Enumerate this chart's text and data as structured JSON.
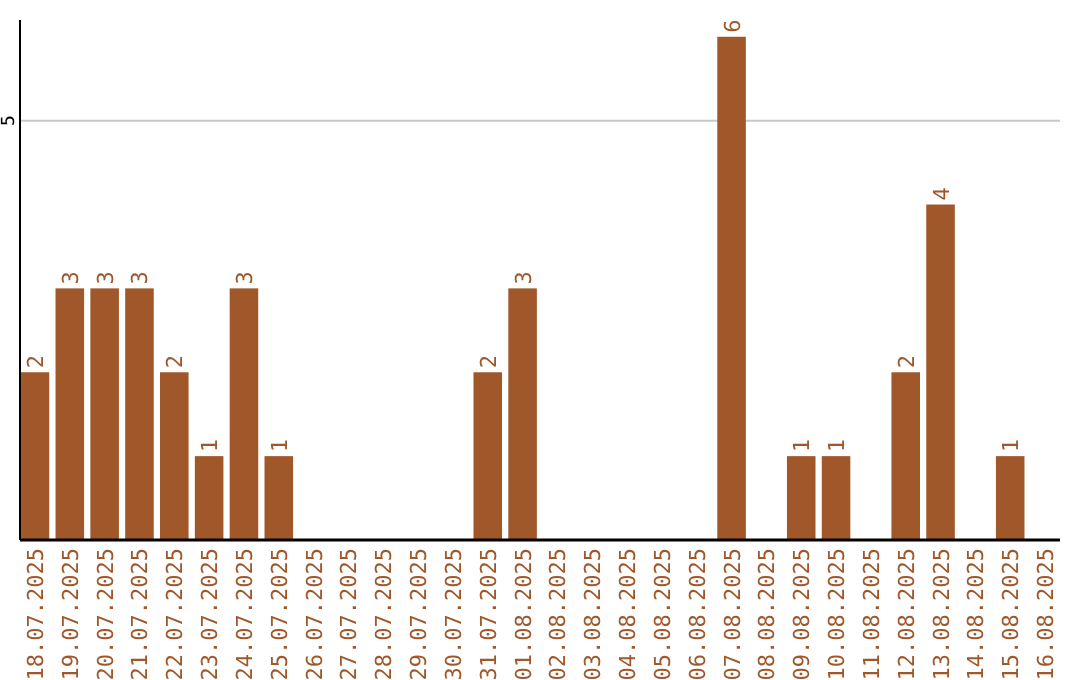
{
  "chart_data": {
    "type": "bar",
    "categories": [
      "18.07.2025",
      "19.07.2025",
      "20.07.2025",
      "21.07.2025",
      "22.07.2025",
      "23.07.2025",
      "24.07.2025",
      "25.07.2025",
      "26.07.2025",
      "27.07.2025",
      "28.07.2025",
      "29.07.2025",
      "30.07.2025",
      "31.07.2025",
      "01.08.2025",
      "02.08.2025",
      "03.08.2025",
      "04.08.2025",
      "05.08.2025",
      "06.08.2025",
      "07.08.2025",
      "08.08.2025",
      "09.08.2025",
      "10.08.2025",
      "11.08.2025",
      "12.08.2025",
      "13.08.2025",
      "14.08.2025",
      "15.08.2025",
      "16.08.2025"
    ],
    "values": [
      2,
      3,
      3,
      3,
      2,
      1,
      3,
      1,
      0,
      0,
      0,
      0,
      0,
      2,
      3,
      0,
      0,
      0,
      0,
      0,
      6,
      0,
      1,
      1,
      0,
      2,
      4,
      0,
      1,
      0
    ],
    "value_labels": [
      "2",
      "3",
      "3",
      "3",
      "2",
      "1",
      "3",
      "1",
      null,
      null,
      null,
      null,
      null,
      "2",
      "3",
      null,
      null,
      null,
      null,
      null,
      "6",
      null,
      "1",
      "1",
      null,
      "2",
      "4",
      null,
      "1",
      null
    ],
    "color": "#a0572a",
    "ylim": [
      0,
      6.2
    ],
    "yticks": [
      5
    ],
    "grid": "y"
  }
}
